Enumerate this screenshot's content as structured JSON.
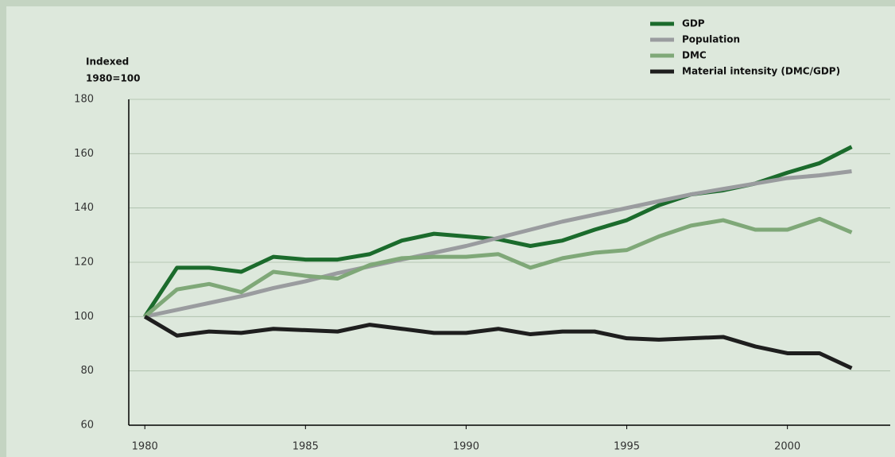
{
  "chart_data": {
    "type": "line",
    "y_label": [
      "Indexed",
      "1980=100"
    ],
    "x": [
      1980,
      1981,
      1982,
      1983,
      1984,
      1985,
      1986,
      1987,
      1988,
      1989,
      1990,
      1991,
      1992,
      1993,
      1994,
      1995,
      1996,
      1997,
      1998,
      1999,
      2000,
      2001,
      2002
    ],
    "series": [
      {
        "name": "GDP",
        "color": "#1b6b2c",
        "values": [
          100,
          118,
          118,
          116.5,
          122,
          121,
          121,
          123,
          128,
          130.5,
          129.5,
          128.5,
          126,
          128,
          132,
          135.5,
          141,
          145,
          146.5,
          149,
          153,
          156.5,
          162.5
        ]
      },
      {
        "name": "Population",
        "color": "#9a9c9f",
        "values": [
          100,
          102.5,
          105,
          107.5,
          110.5,
          113,
          116,
          118.5,
          121,
          123.5,
          126,
          129,
          132,
          135,
          137.5,
          140,
          142.5,
          145,
          147,
          149,
          151,
          152,
          153.5
        ]
      },
      {
        "name": "DMC",
        "color": "#7fa878",
        "values": [
          100,
          110,
          112,
          109,
          116.5,
          115,
          114,
          119,
          121.5,
          122,
          122,
          123,
          118,
          121.5,
          123.5,
          124.5,
          129.5,
          133.5,
          135.5,
          132,
          132,
          136,
          131
        ]
      },
      {
        "name": "Material intensity (DMC/GDP)",
        "color": "#1e1e1e",
        "values": [
          100,
          93,
          94.5,
          94,
          95.5,
          95,
          94.5,
          97,
          95.5,
          94,
          94,
          95.5,
          93.5,
          94.5,
          94.5,
          92,
          91.5,
          92,
          92.5,
          89,
          86.5,
          86.5,
          81
        ]
      }
    ],
    "xlim": [
      1979.5,
      2003.2
    ],
    "xticks": [
      1980,
      1985,
      1990,
      1995,
      2000
    ],
    "ylim": [
      60,
      180
    ],
    "yticks": [
      60,
      80,
      100,
      120,
      140,
      160,
      180
    ],
    "grid": true,
    "legend": "top-right"
  }
}
